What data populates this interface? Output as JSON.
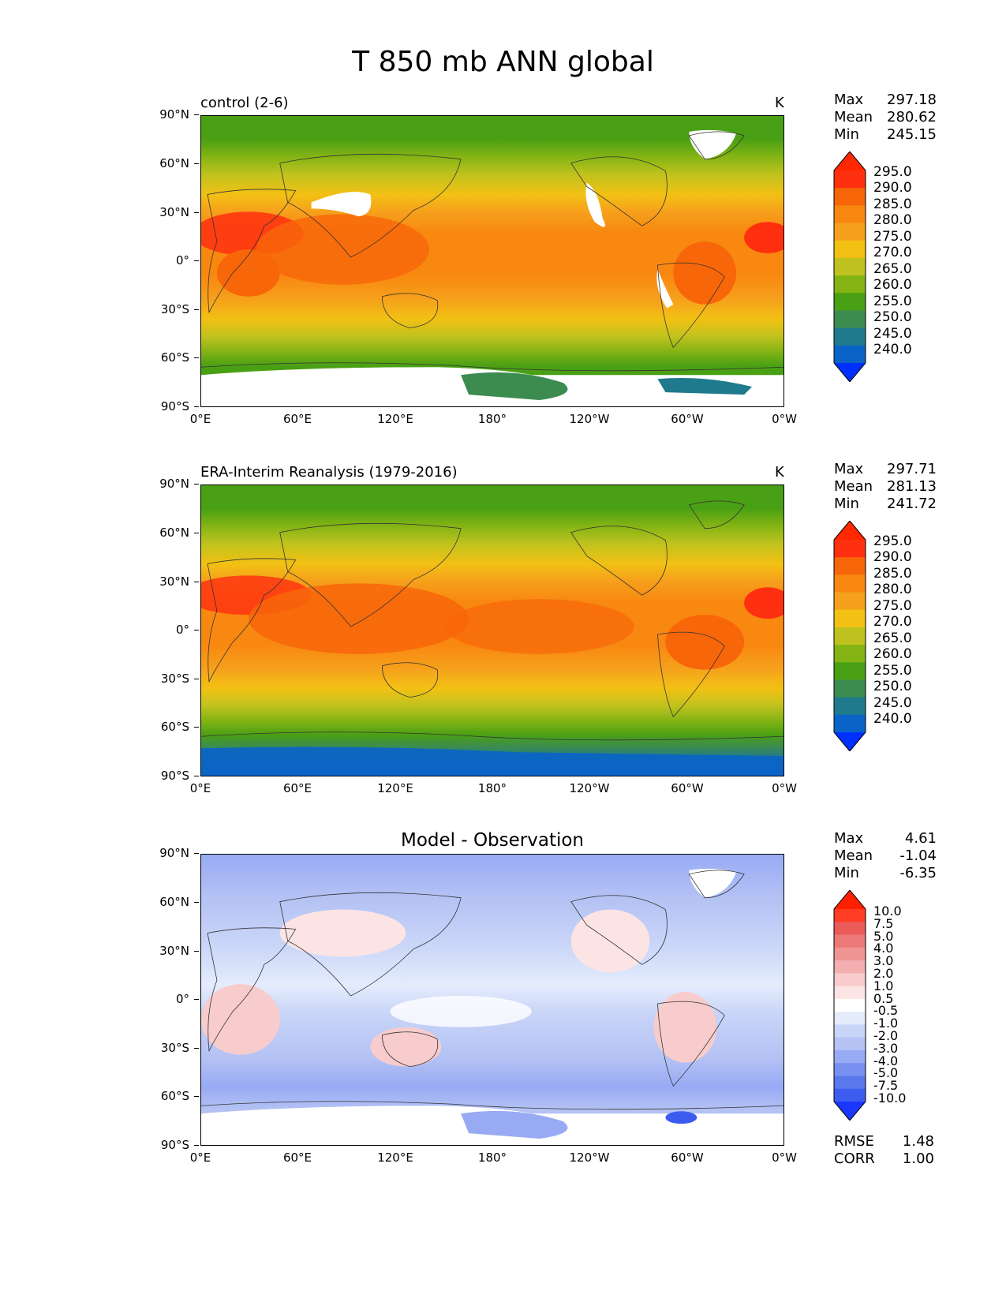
{
  "figure_title": "T 850 mb ANN global",
  "lat_labels": [
    "90°N",
    "60°N",
    "30°N",
    "0°",
    "30°S",
    "60°S",
    "90°S"
  ],
  "lon_labels": [
    "0°E",
    "60°E",
    "120°E",
    "180°",
    "120°W",
    "60°W",
    "0°W"
  ],
  "colors": {
    "abs_scale": [
      "#0030ff",
      "#0a64c8",
      "#1e7a8c",
      "#3c8c50",
      "#4aa014",
      "#84b414",
      "#bfc21e",
      "#f2c114",
      "#f6a01c",
      "#f88810",
      "#f8660a",
      "#ff3010",
      "#ff2800"
    ],
    "diff_scale": [
      "#1a36ff",
      "#3c5cf0",
      "#5878ec",
      "#7890f0",
      "#98aaf4",
      "#b4c2f4",
      "#c8d4f8",
      "#e4ecfc",
      "#ffffff",
      "#fce4e4",
      "#f8cccc",
      "#f4b0b0",
      "#f09494",
      "#ec7878",
      "#ec5a5a",
      "#ff3c24",
      "#ff2000"
    ],
    "missing": "#ffffff"
  },
  "panels": [
    {
      "id": "test",
      "title": "control (2-6)",
      "units": "K",
      "stats": {
        "max_label": "Max",
        "max": "297.18",
        "mean_label": "Mean",
        "mean": "280.62",
        "min_label": "Min",
        "min": "245.15"
      },
      "colorbar_ticks": [
        "295.0",
        "290.0",
        "285.0",
        "280.0",
        "275.0",
        "270.0",
        "265.0",
        "260.0",
        "255.0",
        "250.0",
        "245.0",
        "240.0"
      ]
    },
    {
      "id": "ref",
      "title": "ERA-Interim Reanalysis (1979-2016)",
      "units": "K",
      "stats": {
        "max_label": "Max",
        "max": "297.71",
        "mean_label": "Mean",
        "mean": "281.13",
        "min_label": "Min",
        "min": "241.72"
      },
      "colorbar_ticks": [
        "295.0",
        "290.0",
        "285.0",
        "280.0",
        "275.0",
        "270.0",
        "265.0",
        "260.0",
        "255.0",
        "250.0",
        "245.0",
        "240.0"
      ]
    },
    {
      "id": "diff",
      "title": "Model - Observation",
      "units": "",
      "stats": {
        "max_label": "Max",
        "max": "4.61",
        "mean_label": "Mean",
        "mean": "-1.04",
        "min_label": "Min",
        "min": "-6.35"
      },
      "colorbar_ticks": [
        "10.0",
        "7.5",
        "5.0",
        "4.0",
        "3.0",
        "2.0",
        "1.0",
        "0.5",
        "-0.5",
        "-1.0",
        "-2.0",
        "-3.0",
        "-4.0",
        "-5.0",
        "-7.5",
        "-10.0"
      ],
      "metrics": {
        "rmse_label": "RMSE",
        "rmse": "1.48",
        "corr_label": "CORR",
        "corr": "1.00"
      }
    }
  ]
}
